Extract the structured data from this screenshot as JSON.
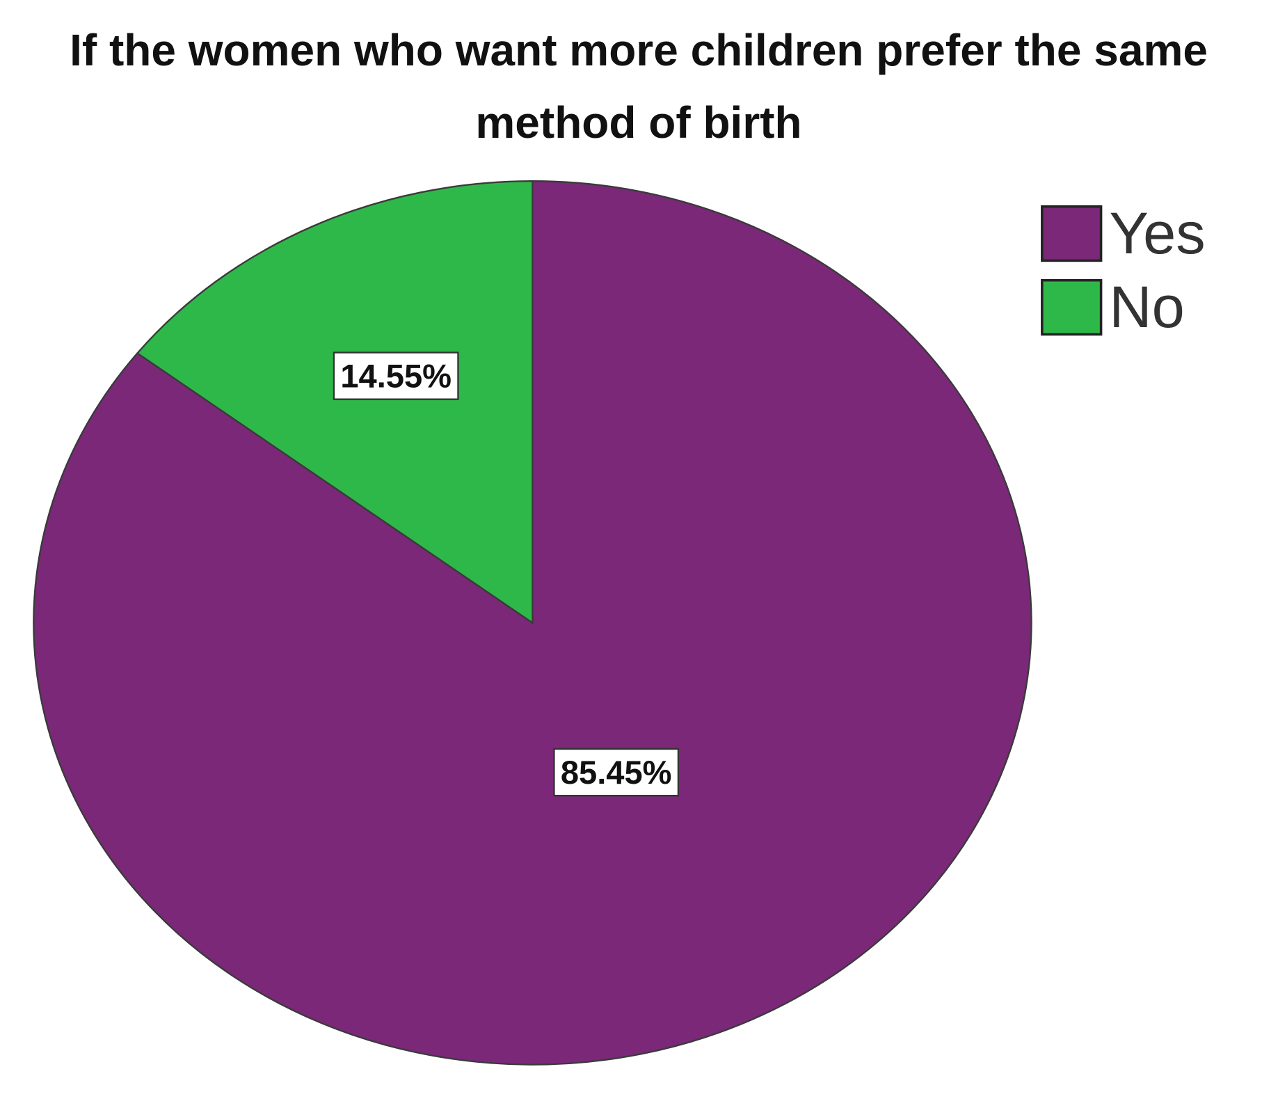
{
  "chart_data": {
    "type": "pie",
    "title": "If the women who want more children prefer the same method of birth",
    "categories": [
      "Yes",
      "No"
    ],
    "values": [
      85.45,
      14.55
    ],
    "value_labels": [
      "85.45%",
      "14.55%"
    ],
    "colors": [
      "#7b2879",
      "#2fb84a"
    ],
    "legend": "top-right"
  }
}
